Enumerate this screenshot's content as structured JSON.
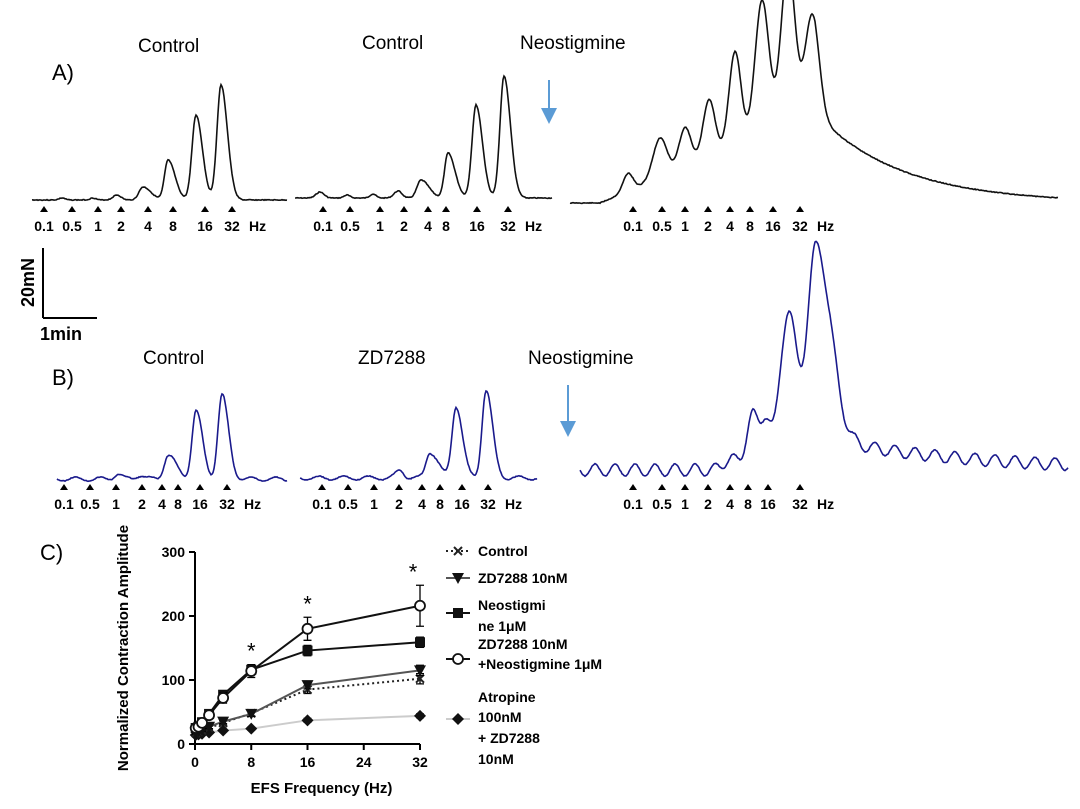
{
  "figure": {
    "panel_a": {
      "label": "A)",
      "conditions": [
        "Control",
        "Control",
        "Neostigmine"
      ],
      "freq_labels": [
        "0.1",
        "0.5",
        "1",
        "2",
        "4",
        "8",
        "16",
        "32"
      ],
      "hz_unit": "Hz",
      "trace_color": "#111111",
      "arrow_color": "#5b9bd5"
    },
    "panel_b": {
      "label": "B)",
      "conditions": [
        "Control",
        "ZD7288",
        "Neostigmine"
      ],
      "freq_labels": [
        "0.1",
        "0.5",
        "1",
        "2",
        "4",
        "8",
        "16",
        "32"
      ],
      "hz_unit": "Hz",
      "trace_color": "#1a1a8c",
      "arrow_color": "#5b9bd5"
    },
    "scale_bar": {
      "force": "20mN",
      "time": "1min"
    },
    "panel_c": {
      "label": "C)"
    }
  },
  "chart_data": {
    "type": "line",
    "xlabel": "EFS Frequency (Hz)",
    "ylabel": "Normalized Contraction Amplitude",
    "xlim": [
      0,
      32
    ],
    "ylim": [
      0,
      300
    ],
    "xticks": [
      0,
      8,
      16,
      24,
      32
    ],
    "yticks": [
      0,
      100,
      200,
      300
    ],
    "x": [
      0.1,
      0.5,
      1,
      2,
      4,
      8,
      16,
      32
    ],
    "significance": [
      {
        "x": 8,
        "label": "*"
      },
      {
        "x": 16,
        "label": "*"
      },
      {
        "x": 31,
        "label": "*"
      }
    ],
    "legend_position": "right",
    "series": [
      {
        "name": "Control",
        "marker": "x",
        "dash": "dotted",
        "color": "#222222",
        "values": [
          17,
          19,
          21,
          25,
          33,
          48,
          85,
          102
        ],
        "err": [
          2,
          2,
          2,
          3,
          3,
          4,
          6,
          8
        ]
      },
      {
        "name": "ZD7288 10nM",
        "marker": "triangle-down",
        "dash": "solid",
        "color": "#555555",
        "values": [
          18,
          20,
          22,
          27,
          35,
          47,
          92,
          115
        ],
        "err": [
          2,
          2,
          2,
          3,
          3,
          4,
          6,
          8
        ]
      },
      {
        "name": "Neostigmine 1μM",
        "marker": "square",
        "dash": "solid",
        "color": "#111111",
        "values": [
          25,
          27,
          34,
          47,
          77,
          116,
          146,
          159
        ],
        "err": [
          3,
          3,
          3,
          4,
          6,
          7,
          8,
          8
        ]
      },
      {
        "name": "ZD7288 10nM +Neostigmine 1μM",
        "marker": "circle-open",
        "dash": "solid",
        "color": "#111111",
        "values": [
          25,
          27,
          33,
          45,
          72,
          114,
          180,
          216
        ],
        "err": [
          3,
          3,
          4,
          5,
          8,
          10,
          18,
          32
        ]
      },
      {
        "name": "Atropine 100nM + ZD7288 10nM",
        "marker": "diamond",
        "dash": "solid",
        "color": "#cccccc",
        "values": [
          14,
          15,
          16,
          18,
          21,
          24,
          37,
          44
        ],
        "err": [
          1,
          1,
          1,
          1,
          2,
          2,
          3,
          3
        ]
      }
    ]
  },
  "legend_display": [
    [
      "Control"
    ],
    [
      "ZD7288 10nM"
    ],
    [
      "Neostigmi",
      "ne 1μM"
    ],
    [
      "ZD7288 10nM",
      "+Neostigmine 1μM"
    ],
    [
      "Atropine",
      "100nM",
      "+ ZD7288",
      "10nM"
    ]
  ]
}
